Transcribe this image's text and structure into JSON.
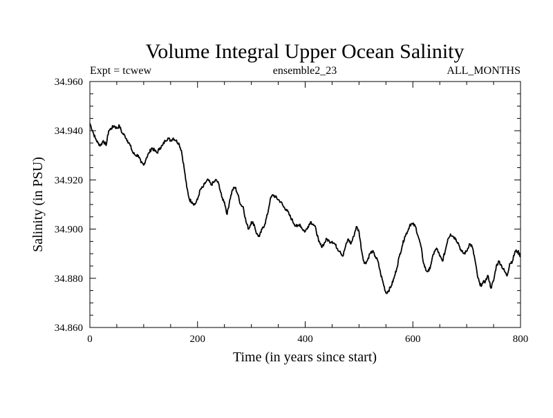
{
  "chart_data": {
    "type": "line",
    "title": "Volume Integral Upper Ocean Salinity",
    "subtitle_left": "Expt = tcwew",
    "subtitle_center": "ensemble2_23",
    "subtitle_right": "ALL_MONTHS",
    "xlabel": "Time (in years since start)",
    "ylabel": "Salinity (in PSU)",
    "xlim": [
      0,
      800
    ],
    "ylim": [
      34.86,
      34.96
    ],
    "x_ticks": [
      0,
      200,
      400,
      600,
      800
    ],
    "x_tick_labels": [
      "0",
      "200",
      "400",
      "600",
      "800"
    ],
    "y_ticks": [
      34.86,
      34.88,
      34.9,
      34.92,
      34.94,
      34.96
    ],
    "y_tick_labels": [
      "34.860",
      "34.880",
      "34.900",
      "34.920",
      "34.940",
      "34.960"
    ],
    "grid": false,
    "series": [
      {
        "name": "Salinity",
        "color": "#000000",
        "points": [
          [
            0,
            34.943
          ],
          [
            5,
            34.94
          ],
          [
            10,
            34.937
          ],
          [
            15,
            34.935
          ],
          [
            20,
            34.934
          ],
          [
            25,
            34.936
          ],
          [
            30,
            34.934
          ],
          [
            35,
            34.94
          ],
          [
            40,
            34.941
          ],
          [
            45,
            34.942
          ],
          [
            50,
            34.941
          ],
          [
            55,
            34.942
          ],
          [
            60,
            34.939
          ],
          [
            65,
            34.938
          ],
          [
            70,
            34.936
          ],
          [
            75,
            34.934
          ],
          [
            80,
            34.931
          ],
          [
            85,
            34.93
          ],
          [
            90,
            34.93
          ],
          [
            95,
            34.927
          ],
          [
            100,
            34.926
          ],
          [
            105,
            34.929
          ],
          [
            110,
            34.931
          ],
          [
            115,
            34.933
          ],
          [
            120,
            34.932
          ],
          [
            125,
            34.931
          ],
          [
            130,
            34.933
          ],
          [
            135,
            34.934
          ],
          [
            140,
            34.936
          ],
          [
            145,
            34.937
          ],
          [
            150,
            34.936
          ],
          [
            155,
            34.937
          ],
          [
            160,
            34.936
          ],
          [
            165,
            34.935
          ],
          [
            170,
            34.932
          ],
          [
            175,
            34.925
          ],
          [
            180,
            34.917
          ],
          [
            185,
            34.912
          ],
          [
            190,
            34.911
          ],
          [
            195,
            34.91
          ],
          [
            200,
            34.912
          ],
          [
            205,
            34.916
          ],
          [
            210,
            34.917
          ],
          [
            215,
            34.919
          ],
          [
            220,
            34.92
          ],
          [
            225,
            34.918
          ],
          [
            230,
            34.919
          ],
          [
            235,
            34.92
          ],
          [
            240,
            34.918
          ],
          [
            245,
            34.913
          ],
          [
            250,
            34.911
          ],
          [
            255,
            34.906
          ],
          [
            260,
            34.912
          ],
          [
            265,
            34.916
          ],
          [
            270,
            34.917
          ],
          [
            275,
            34.914
          ],
          [
            280,
            34.91
          ],
          [
            285,
            34.909
          ],
          [
            290,
            34.903
          ],
          [
            295,
            34.9
          ],
          [
            300,
            34.903
          ],
          [
            305,
            34.902
          ],
          [
            310,
            34.898
          ],
          [
            315,
            34.897
          ],
          [
            320,
            34.9
          ],
          [
            325,
            34.902
          ],
          [
            330,
            34.906
          ],
          [
            335,
            34.912
          ],
          [
            340,
            34.914
          ],
          [
            345,
            34.913
          ],
          [
            350,
            34.912
          ],
          [
            355,
            34.911
          ],
          [
            360,
            34.909
          ],
          [
            365,
            34.908
          ],
          [
            370,
            34.906
          ],
          [
            375,
            34.904
          ],
          [
            380,
            34.902
          ],
          [
            385,
            34.901
          ],
          [
            390,
            34.902
          ],
          [
            395,
            34.9
          ],
          [
            400,
            34.899
          ],
          [
            405,
            34.901
          ],
          [
            410,
            34.903
          ],
          [
            415,
            34.902
          ],
          [
            420,
            34.9
          ],
          [
            425,
            34.895
          ],
          [
            430,
            34.893
          ],
          [
            435,
            34.894
          ],
          [
            440,
            34.896
          ],
          [
            445,
            34.895
          ],
          [
            450,
            34.895
          ],
          [
            455,
            34.894
          ],
          [
            460,
            34.892
          ],
          [
            465,
            34.891
          ],
          [
            470,
            34.889
          ],
          [
            475,
            34.893
          ],
          [
            480,
            34.896
          ],
          [
            485,
            34.894
          ],
          [
            490,
            34.897
          ],
          [
            495,
            34.901
          ],
          [
            500,
            34.899
          ],
          [
            505,
            34.891
          ],
          [
            510,
            34.886
          ],
          [
            515,
            34.887
          ],
          [
            520,
            34.89
          ],
          [
            525,
            34.891
          ],
          [
            530,
            34.889
          ],
          [
            535,
            34.887
          ],
          [
            540,
            34.882
          ],
          [
            545,
            34.878
          ],
          [
            550,
            34.874
          ],
          [
            555,
            34.875
          ],
          [
            560,
            34.877
          ],
          [
            565,
            34.88
          ],
          [
            570,
            34.884
          ],
          [
            575,
            34.889
          ],
          [
            580,
            34.893
          ],
          [
            585,
            34.897
          ],
          [
            590,
            34.899
          ],
          [
            595,
            34.902
          ],
          [
            600,
            34.902
          ],
          [
            605,
            34.901
          ],
          [
            610,
            34.897
          ],
          [
            615,
            34.893
          ],
          [
            620,
            34.886
          ],
          [
            625,
            34.883
          ],
          [
            630,
            34.883
          ],
          [
            635,
            34.887
          ],
          [
            640,
            34.891
          ],
          [
            645,
            34.892
          ],
          [
            650,
            34.889
          ],
          [
            655,
            34.887
          ],
          [
            660,
            34.891
          ],
          [
            665,
            34.896
          ],
          [
            670,
            34.898
          ],
          [
            675,
            34.897
          ],
          [
            680,
            34.896
          ],
          [
            685,
            34.894
          ],
          [
            690,
            34.891
          ],
          [
            695,
            34.89
          ],
          [
            700,
            34.891
          ],
          [
            705,
            34.894
          ],
          [
            710,
            34.893
          ],
          [
            715,
            34.888
          ],
          [
            720,
            34.881
          ],
          [
            725,
            34.877
          ],
          [
            730,
            34.878
          ],
          [
            735,
            34.879
          ],
          [
            740,
            34.881
          ],
          [
            745,
            34.876
          ],
          [
            750,
            34.879
          ],
          [
            755,
            34.885
          ],
          [
            760,
            34.887
          ],
          [
            765,
            34.885
          ],
          [
            770,
            34.883
          ],
          [
            775,
            34.881
          ],
          [
            780,
            34.886
          ],
          [
            785,
            34.887
          ],
          [
            790,
            34.891
          ],
          [
            795,
            34.891
          ],
          [
            800,
            34.889
          ]
        ]
      }
    ]
  }
}
